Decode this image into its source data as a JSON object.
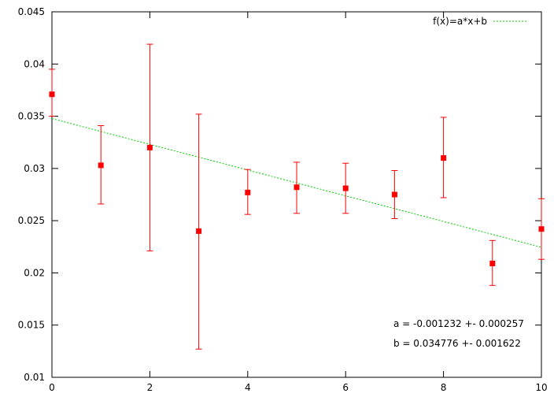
{
  "chart_data": {
    "type": "scatter",
    "title": "",
    "xlabel": "",
    "ylabel": "",
    "xlim": [
      0,
      10
    ],
    "ylim": [
      0.01,
      0.045
    ],
    "x_ticks": [
      "0",
      "2",
      "4",
      "6",
      "8",
      "10"
    ],
    "y_ticks": [
      "0.01",
      "0.015",
      "0.02",
      "0.025",
      "0.03",
      "0.035",
      "0.04",
      "0.045"
    ],
    "grid": false,
    "legend_position": "top-right",
    "series": [
      {
        "kind": "points-with-errorbars",
        "color": "#ff0000",
        "points": [
          {
            "x": 0,
            "y": 0.0371,
            "ylow": 0.035,
            "yhigh": 0.0395
          },
          {
            "x": 1,
            "y": 0.0303,
            "ylow": 0.0266,
            "yhigh": 0.0341
          },
          {
            "x": 2,
            "y": 0.032,
            "ylow": 0.0221,
            "yhigh": 0.0419
          },
          {
            "x": 3,
            "y": 0.024,
            "ylow": 0.0127,
            "yhigh": 0.0352
          },
          {
            "x": 4,
            "y": 0.0277,
            "ylow": 0.0256,
            "yhigh": 0.0299
          },
          {
            "x": 5,
            "y": 0.0282,
            "ylow": 0.0257,
            "yhigh": 0.0306
          },
          {
            "x": 6,
            "y": 0.0281,
            "ylow": 0.0257,
            "yhigh": 0.0305
          },
          {
            "x": 7,
            "y": 0.0275,
            "ylow": 0.0252,
            "yhigh": 0.0298
          },
          {
            "x": 8,
            "y": 0.031,
            "ylow": 0.0272,
            "yhigh": 0.0349
          },
          {
            "x": 9,
            "y": 0.0209,
            "ylow": 0.0188,
            "yhigh": 0.0231
          },
          {
            "x": 10,
            "y": 0.0242,
            "ylow": 0.0213,
            "yhigh": 0.0271
          }
        ]
      },
      {
        "name": "f(x)=a*x+b",
        "kind": "fit-line",
        "color": "#00cc00",
        "a": -0.001232,
        "b": 0.034776
      }
    ],
    "annotations": [
      "a = -0.001232 +- 0.000257",
      "b = 0.034776 +- 0.001622"
    ]
  }
}
